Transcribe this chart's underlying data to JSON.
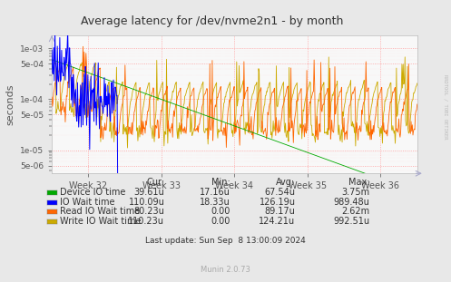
{
  "title": "Average latency for /dev/nvme2n1 - by month",
  "ylabel": "seconds",
  "background_color": "#e8e8e8",
  "plot_bg_color": "#f8f8f8",
  "grid_color_major": "#ff9999",
  "grid_color_minor": "#ffdddd",
  "x_labels": [
    "Week 32",
    "Week 33",
    "Week 34",
    "Week 35",
    "Week 36"
  ],
  "yticks": [
    5e-06,
    1e-05,
    5e-05,
    0.0001,
    0.0005,
    0.001
  ],
  "ytick_labels": [
    "5e-06",
    "1e-05",
    "5e-05",
    "1e-04",
    "5e-04",
    "1e-03"
  ],
  "legend": [
    {
      "label": "Device IO time",
      "color": "#00aa00"
    },
    {
      "label": "IO Wait time",
      "color": "#0000ff"
    },
    {
      "label": "Read IO Wait time",
      "color": "#ff6600"
    },
    {
      "label": "Write IO Wait time",
      "color": "#ccaa00"
    }
  ],
  "table_headers": [
    "Cur:",
    "Min:",
    "Avg:",
    "Max:"
  ],
  "table_data": [
    [
      "39.61u",
      "17.16u",
      "67.54u",
      "3.75m"
    ],
    [
      "110.09u",
      "18.33u",
      "126.19u",
      "989.48u"
    ],
    [
      "80.23u",
      "0.00",
      "89.17u",
      "2.62m"
    ],
    [
      "110.23u",
      "0.00",
      "124.21u",
      "992.51u"
    ]
  ],
  "last_update": "Last update: Sun Sep  8 13:00:09 2024",
  "munin_version": "Munin 2.0.73",
  "rrdtool_label": "RRDTOOL / TOBI OETIKER",
  "n_points": 600
}
